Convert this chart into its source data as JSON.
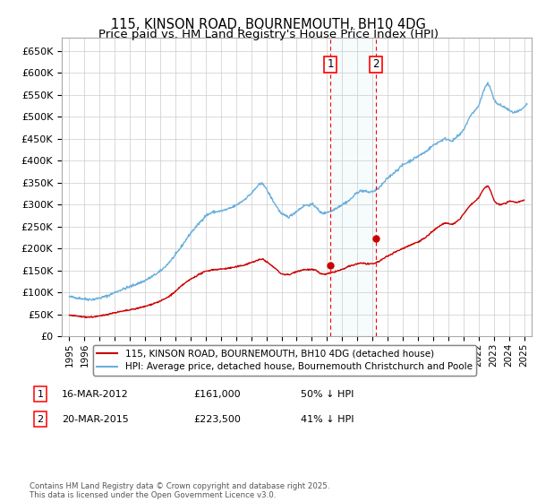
{
  "title": "115, KINSON ROAD, BOURNEMOUTH, BH10 4DG",
  "subtitle": "Price paid vs. HM Land Registry's House Price Index (HPI)",
  "ylim": [
    0,
    680000
  ],
  "yticks": [
    0,
    50000,
    100000,
    150000,
    200000,
    250000,
    300000,
    350000,
    400000,
    450000,
    500000,
    550000,
    600000,
    650000
  ],
  "ytick_labels": [
    "£0",
    "£50K",
    "£100K",
    "£150K",
    "£200K",
    "£250K",
    "£300K",
    "£350K",
    "£400K",
    "£450K",
    "£500K",
    "£550K",
    "£600K",
    "£650K"
  ],
  "hpi_color": "#6ab0de",
  "price_color": "#cc0000",
  "transaction1": {
    "date_num": 2012.21,
    "price": 161000,
    "label": "1",
    "date_str": "16-MAR-2012",
    "price_str": "£161,000",
    "pct": "50% ↓ HPI"
  },
  "transaction2": {
    "date_num": 2015.22,
    "price": 223500,
    "label": "2",
    "date_str": "20-MAR-2015",
    "price_str": "£223,500",
    "pct": "41% ↓ HPI"
  },
  "legend_line1": "115, KINSON ROAD, BOURNEMOUTH, BH10 4DG (detached house)",
  "legend_line2": "HPI: Average price, detached house, Bournemouth Christchurch and Poole",
  "footnote": "Contains HM Land Registry data © Crown copyright and database right 2025.\nThis data is licensed under the Open Government Licence v3.0.",
  "background_color": "#ffffff",
  "grid_color": "#cccccc",
  "xlim_start": 1994.5,
  "xlim_end": 2025.5,
  "xtick_years": [
    1995,
    1996,
    1997,
    1998,
    1999,
    2000,
    2001,
    2002,
    2003,
    2004,
    2005,
    2006,
    2007,
    2008,
    2009,
    2010,
    2011,
    2012,
    2013,
    2014,
    2015,
    2016,
    2017,
    2018,
    2019,
    2020,
    2021,
    2022,
    2023,
    2024,
    2025
  ],
  "hpi_anchors": [
    [
      1995.0,
      90000
    ],
    [
      1995.5,
      88000
    ],
    [
      1996.0,
      85000
    ],
    [
      1996.5,
      84000
    ],
    [
      1997.0,
      87000
    ],
    [
      1997.5,
      92000
    ],
    [
      1998.0,
      100000
    ],
    [
      1998.5,
      107000
    ],
    [
      1999.0,
      113000
    ],
    [
      1999.5,
      120000
    ],
    [
      2000.0,
      127000
    ],
    [
      2000.5,
      137000
    ],
    [
      2001.0,
      148000
    ],
    [
      2001.5,
      165000
    ],
    [
      2002.0,
      185000
    ],
    [
      2002.5,
      210000
    ],
    [
      2003.0,
      235000
    ],
    [
      2003.5,
      255000
    ],
    [
      2004.0,
      275000
    ],
    [
      2004.5,
      283000
    ],
    [
      2005.0,
      285000
    ],
    [
      2005.5,
      290000
    ],
    [
      2006.0,
      298000
    ],
    [
      2006.5,
      310000
    ],
    [
      2007.0,
      325000
    ],
    [
      2007.5,
      345000
    ],
    [
      2007.8,
      348000
    ],
    [
      2008.0,
      335000
    ],
    [
      2008.5,
      305000
    ],
    [
      2009.0,
      278000
    ],
    [
      2009.5,
      272000
    ],
    [
      2010.0,
      285000
    ],
    [
      2010.5,
      298000
    ],
    [
      2011.0,
      300000
    ],
    [
      2011.3,
      295000
    ],
    [
      2011.5,
      283000
    ],
    [
      2011.8,
      280000
    ],
    [
      2012.0,
      283000
    ],
    [
      2012.3,
      285000
    ],
    [
      2012.5,
      290000
    ],
    [
      2013.0,
      300000
    ],
    [
      2013.5,
      310000
    ],
    [
      2014.0,
      328000
    ],
    [
      2014.3,
      332000
    ],
    [
      2014.5,
      330000
    ],
    [
      2014.8,
      328000
    ],
    [
      2015.0,
      330000
    ],
    [
      2015.2,
      332000
    ],
    [
      2015.5,
      340000
    ],
    [
      2016.0,
      360000
    ],
    [
      2016.5,
      375000
    ],
    [
      2017.0,
      390000
    ],
    [
      2017.5,
      400000
    ],
    [
      2018.0,
      410000
    ],
    [
      2018.5,
      420000
    ],
    [
      2019.0,
      435000
    ],
    [
      2019.5,
      445000
    ],
    [
      2019.8,
      450000
    ],
    [
      2020.0,
      448000
    ],
    [
      2020.3,
      445000
    ],
    [
      2020.5,
      452000
    ],
    [
      2020.8,
      460000
    ],
    [
      2021.0,
      470000
    ],
    [
      2021.3,
      490000
    ],
    [
      2021.5,
      505000
    ],
    [
      2021.8,
      515000
    ],
    [
      2022.0,
      525000
    ],
    [
      2022.2,
      545000
    ],
    [
      2022.4,
      565000
    ],
    [
      2022.6,
      575000
    ],
    [
      2022.7,
      570000
    ],
    [
      2022.9,
      555000
    ],
    [
      2023.0,
      540000
    ],
    [
      2023.2,
      530000
    ],
    [
      2023.5,
      525000
    ],
    [
      2023.8,
      520000
    ],
    [
      2024.0,
      515000
    ],
    [
      2024.2,
      510000
    ],
    [
      2024.5,
      510000
    ],
    [
      2024.8,
      515000
    ],
    [
      2025.0,
      520000
    ],
    [
      2025.2,
      530000
    ]
  ],
  "price_anchors": [
    [
      1995.0,
      48000
    ],
    [
      1995.5,
      46000
    ],
    [
      1996.0,
      44000
    ],
    [
      1996.5,
      44000
    ],
    [
      1997.0,
      46000
    ],
    [
      1997.5,
      50000
    ],
    [
      1998.0,
      54000
    ],
    [
      1998.5,
      57000
    ],
    [
      1999.0,
      60000
    ],
    [
      1999.5,
      64000
    ],
    [
      2000.0,
      68000
    ],
    [
      2000.5,
      74000
    ],
    [
      2001.0,
      80000
    ],
    [
      2001.5,
      89000
    ],
    [
      2002.0,
      102000
    ],
    [
      2002.5,
      118000
    ],
    [
      2003.0,
      130000
    ],
    [
      2003.5,
      140000
    ],
    [
      2004.0,
      148000
    ],
    [
      2004.5,
      152000
    ],
    [
      2005.0,
      153000
    ],
    [
      2005.5,
      155000
    ],
    [
      2006.0,
      158000
    ],
    [
      2006.5,
      162000
    ],
    [
      2007.0,
      168000
    ],
    [
      2007.5,
      174000
    ],
    [
      2007.8,
      176000
    ],
    [
      2008.0,
      170000
    ],
    [
      2008.5,
      157000
    ],
    [
      2009.0,
      142000
    ],
    [
      2009.5,
      140000
    ],
    [
      2010.0,
      148000
    ],
    [
      2010.5,
      152000
    ],
    [
      2011.0,
      152000
    ],
    [
      2011.3,
      150000
    ],
    [
      2011.5,
      144000
    ],
    [
      2011.8,
      141000
    ],
    [
      2012.0,
      142000
    ],
    [
      2012.2,
      144000
    ],
    [
      2012.5,
      147000
    ],
    [
      2013.0,
      152000
    ],
    [
      2013.5,
      160000
    ],
    [
      2014.0,
      165000
    ],
    [
      2014.2,
      167000
    ],
    [
      2014.5,
      166000
    ],
    [
      2014.8,
      164000
    ],
    [
      2015.0,
      165000
    ],
    [
      2015.2,
      167000
    ],
    [
      2015.5,
      172000
    ],
    [
      2016.0,
      183000
    ],
    [
      2016.5,
      192000
    ],
    [
      2017.0,
      200000
    ],
    [
      2017.5,
      208000
    ],
    [
      2018.0,
      215000
    ],
    [
      2018.5,
      225000
    ],
    [
      2019.0,
      240000
    ],
    [
      2019.5,
      253000
    ],
    [
      2019.8,
      258000
    ],
    [
      2020.0,
      256000
    ],
    [
      2020.3,
      255000
    ],
    [
      2020.5,
      260000
    ],
    [
      2020.8,
      268000
    ],
    [
      2021.0,
      278000
    ],
    [
      2021.3,
      292000
    ],
    [
      2021.5,
      300000
    ],
    [
      2021.8,
      308000
    ],
    [
      2022.0,
      315000
    ],
    [
      2022.2,
      328000
    ],
    [
      2022.4,
      338000
    ],
    [
      2022.6,
      342000
    ],
    [
      2022.7,
      338000
    ],
    [
      2022.9,
      322000
    ],
    [
      2023.0,
      310000
    ],
    [
      2023.2,
      302000
    ],
    [
      2023.5,
      300000
    ],
    [
      2023.8,
      303000
    ],
    [
      2024.0,
      307000
    ],
    [
      2024.2,
      308000
    ],
    [
      2024.5,
      305000
    ],
    [
      2024.8,
      308000
    ],
    [
      2025.0,
      310000
    ]
  ]
}
